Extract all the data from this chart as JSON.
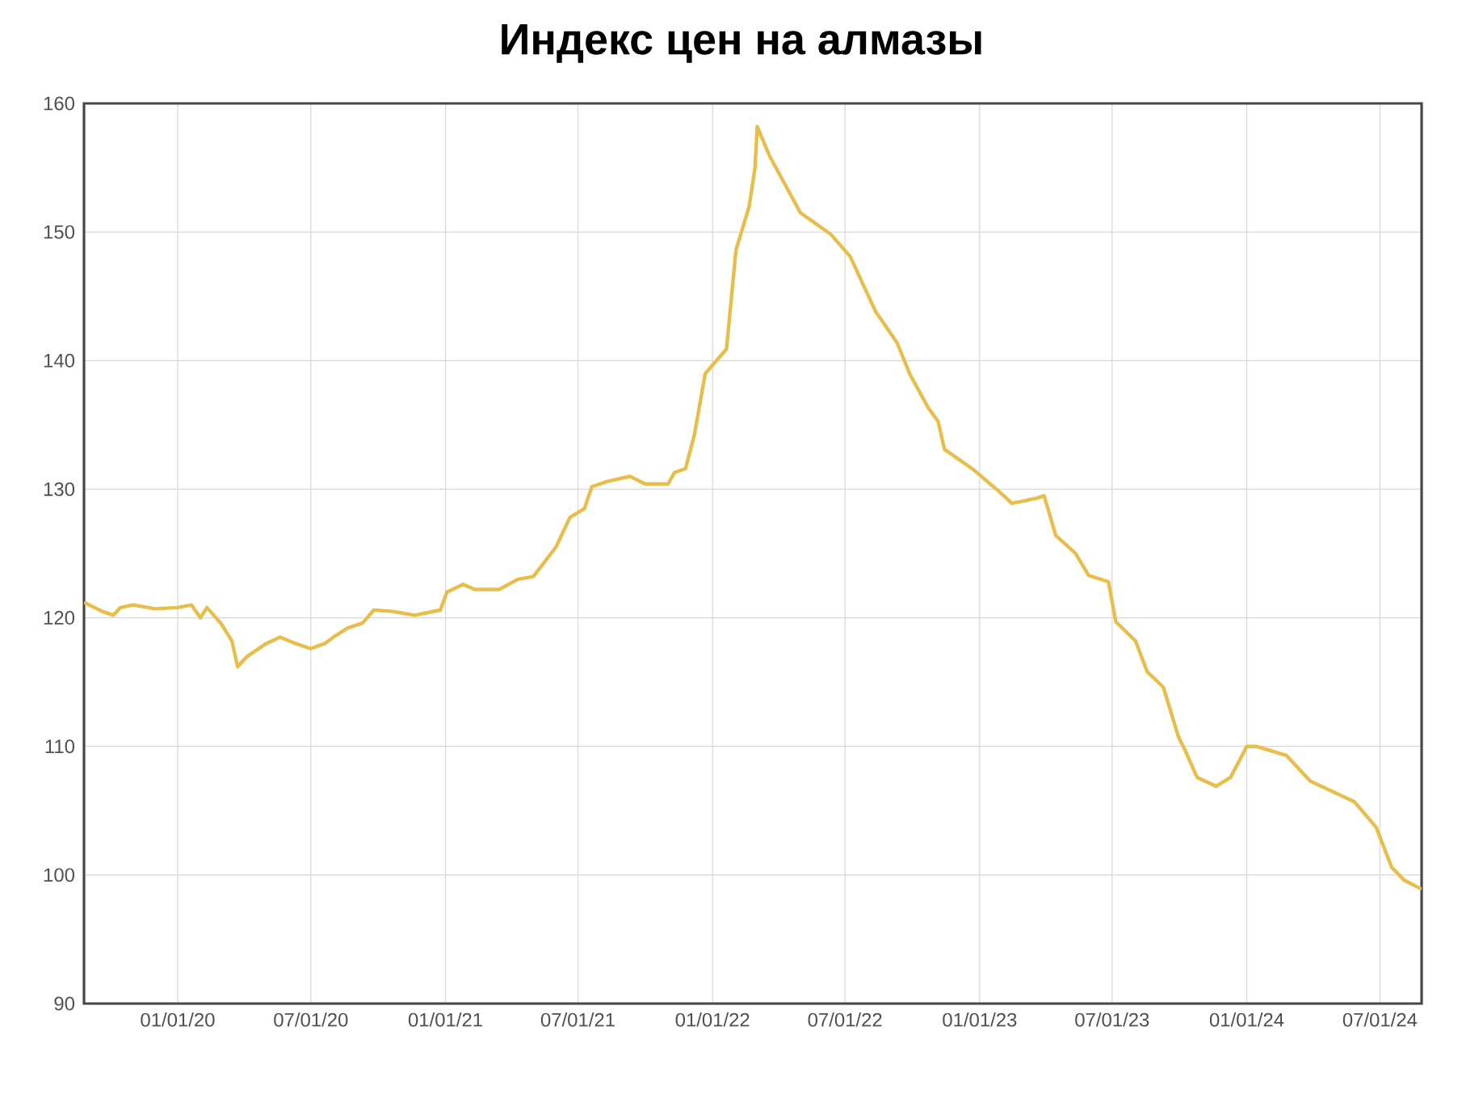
{
  "chart_data": {
    "type": "line",
    "title": "Индекс цен на алмазы",
    "x": [
      "2019-08-26",
      "2019-09-20",
      "2019-10-05",
      "2019-10-15",
      "2019-11-01",
      "2019-12-01",
      "2020-01-01",
      "2020-01-20",
      "2020-02-01",
      "2020-02-10",
      "2020-03-01",
      "2020-03-15",
      "2020-03-23",
      "2020-04-05",
      "2020-05-01",
      "2020-05-20",
      "2020-06-10",
      "2020-07-01",
      "2020-07-20",
      "2020-08-01",
      "2020-08-20",
      "2020-09-10",
      "2020-09-25",
      "2020-10-20",
      "2020-11-20",
      "2020-12-25",
      "2021-01-03",
      "2021-01-25",
      "2021-02-10",
      "2021-03-15",
      "2021-04-10",
      "2021-05-01",
      "2021-06-01",
      "2021-06-20",
      "2021-07-10",
      "2021-07-20",
      "2021-08-10",
      "2021-09-10",
      "2021-10-01",
      "2021-11-01",
      "2021-11-10",
      "2021-11-25",
      "2021-12-07",
      "2021-12-22",
      "2022-01-20",
      "2022-02-02",
      "2022-02-20",
      "2022-02-28",
      "2022-03-03",
      "2022-03-20",
      "2022-05-01",
      "2022-06-12",
      "2022-07-08",
      "2022-08-12",
      "2022-09-10",
      "2022-09-28",
      "2022-10-23",
      "2022-11-05",
      "2022-11-14",
      "2022-12-24",
      "2023-01-28",
      "2023-02-14",
      "2023-03-20",
      "2023-03-30",
      "2023-04-15",
      "2023-05-12",
      "2023-05-30",
      "2023-06-26",
      "2023-07-06",
      "2023-08-02",
      "2023-08-18",
      "2023-09-09",
      "2023-09-30",
      "2023-10-08",
      "2023-10-25",
      "2023-11-20",
      "2023-12-10",
      "2024-01-01",
      "2024-01-14",
      "2024-02-24",
      "2024-03-28",
      "2024-04-23",
      "2024-05-27",
      "2024-06-26",
      "2024-07-17",
      "2024-08-03",
      "2024-08-27"
    ],
    "series": [
      {
        "color": "#e8bd4a",
        "values": [
          121.2,
          120.5,
          120.2,
          120.8,
          121.0,
          120.7,
          120.8,
          121.0,
          120.0,
          120.8,
          119.5,
          118.2,
          116.2,
          117.0,
          118.0,
          118.5,
          118.0,
          117.6,
          118.0,
          118.5,
          119.2,
          119.6,
          120.6,
          120.5,
          120.2,
          120.6,
          122.0,
          122.6,
          122.2,
          122.2,
          123.0,
          123.2,
          125.5,
          127.8,
          128.5,
          130.2,
          130.6,
          131.0,
          130.4,
          130.4,
          131.3,
          131.6,
          134.2,
          139.0,
          140.9,
          148.6,
          152.0,
          155.0,
          158.2,
          155.9,
          151.5,
          149.8,
          148.1,
          143.8,
          141.4,
          138.9,
          136.3,
          135.3,
          133.1,
          131.5,
          129.8,
          128.9,
          129.3,
          129.5,
          126.4,
          125.0,
          123.3,
          122.8,
          119.7,
          118.2,
          115.8,
          114.6,
          110.7,
          109.8,
          107.6,
          106.9,
          107.6,
          110.0,
          110.0,
          109.3,
          107.3,
          106.6,
          105.7,
          103.7,
          100.6,
          99.6,
          98.9
        ]
      }
    ],
    "xlim": [
      "2019-08-26",
      "2024-08-27"
    ],
    "xticks": [
      {
        "value": "2020-01-01",
        "label": "01/01/20"
      },
      {
        "value": "2020-07-01",
        "label": "07/01/20"
      },
      {
        "value": "2021-01-01",
        "label": "01/01/21"
      },
      {
        "value": "2021-07-01",
        "label": "07/01/21"
      },
      {
        "value": "2022-01-01",
        "label": "01/01/22"
      },
      {
        "value": "2022-07-01",
        "label": "07/01/22"
      },
      {
        "value": "2023-01-01",
        "label": "01/01/23"
      },
      {
        "value": "2023-07-01",
        "label": "07/01/23"
      },
      {
        "value": "2024-01-01",
        "label": "01/01/24"
      },
      {
        "value": "2024-07-01",
        "label": "07/01/24"
      }
    ],
    "ylim": [
      90,
      160
    ],
    "yticks": [
      90,
      100,
      110,
      120,
      130,
      140,
      150,
      160
    ],
    "grid": true,
    "line_style": "solid",
    "marker": "none"
  }
}
